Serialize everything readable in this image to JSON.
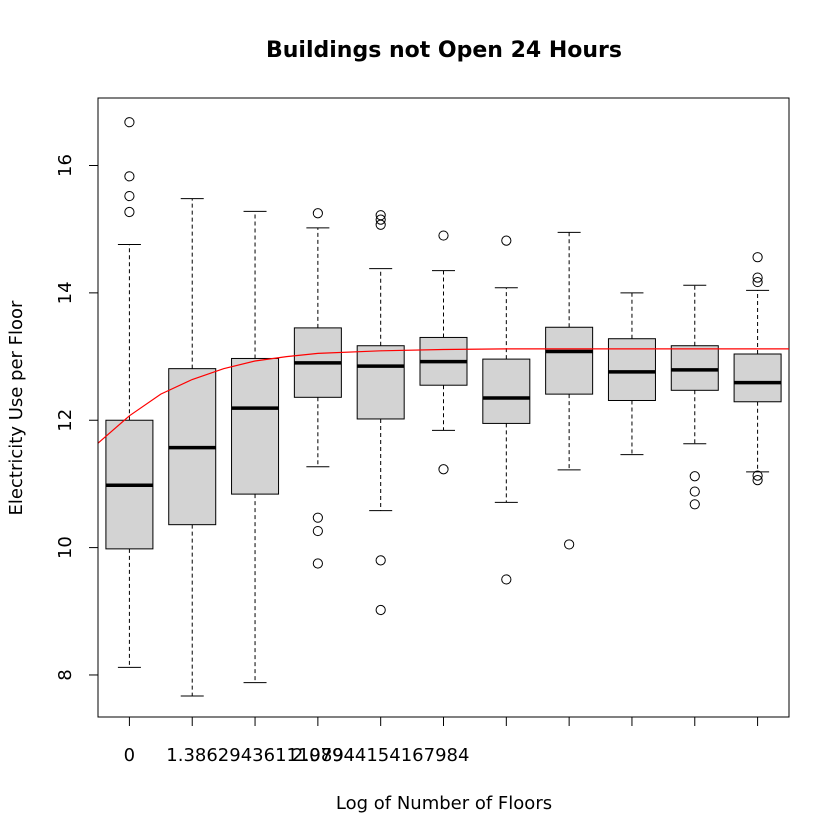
{
  "chart_data": {
    "type": "boxplot",
    "title": "Buildings not Open 24 Hours",
    "xlabel": "Log of Number of Floors",
    "ylabel": "Electricity Use per Floor",
    "ylim": [
      7.34,
      17.06
    ],
    "yticks": [
      8,
      10,
      12,
      14,
      16
    ],
    "grid": false,
    "x_tick_labels": [
      "0",
      "",
      "1.38629436111989",
      "",
      "2.07944154167984",
      "",
      "",
      "",
      "",
      "",
      ""
    ],
    "boxes": [
      {
        "min": 8.12,
        "q1": 9.98,
        "median": 10.98,
        "q3": 12.0,
        "max": 14.76,
        "outliers": [
          15.27,
          15.52,
          15.83,
          16.68
        ]
      },
      {
        "min": 7.67,
        "q1": 10.36,
        "median": 11.57,
        "q3": 12.81,
        "max": 15.48,
        "outliers": []
      },
      {
        "min": 7.88,
        "q1": 10.84,
        "median": 12.19,
        "q3": 12.97,
        "max": 15.28,
        "outliers": []
      },
      {
        "min": 11.27,
        "q1": 12.36,
        "median": 12.9,
        "q3": 13.45,
        "max": 15.02,
        "outliers": [
          9.75,
          10.26,
          10.47,
          15.25
        ]
      },
      {
        "min": 10.58,
        "q1": 12.02,
        "median": 12.85,
        "q3": 13.17,
        "max": 14.38,
        "outliers": [
          9.02,
          9.8,
          15.07,
          15.15,
          15.22
        ]
      },
      {
        "min": 11.84,
        "q1": 12.55,
        "median": 12.92,
        "q3": 13.3,
        "max": 14.35,
        "outliers": [
          11.23,
          14.9
        ]
      },
      {
        "min": 10.71,
        "q1": 11.95,
        "median": 12.35,
        "q3": 12.96,
        "max": 14.08,
        "outliers": [
          9.5,
          14.82
        ]
      },
      {
        "min": 11.22,
        "q1": 12.41,
        "median": 13.08,
        "q3": 13.46,
        "max": 14.95,
        "outliers": [
          10.05
        ]
      },
      {
        "min": 11.46,
        "q1": 12.31,
        "median": 12.76,
        "q3": 13.28,
        "max": 14.0,
        "outliers": []
      },
      {
        "min": 11.63,
        "q1": 12.47,
        "median": 12.79,
        "q3": 13.17,
        "max": 14.12,
        "outliers": [
          10.68,
          10.88,
          11.12
        ]
      },
      {
        "min": 11.19,
        "q1": 12.29,
        "median": 12.59,
        "q3": 13.04,
        "max": 14.04,
        "outliers": [
          11.06,
          11.13,
          14.17,
          14.24,
          14.56
        ]
      }
    ],
    "fit_line": {
      "color": "#ff0000",
      "x": [
        0.5,
        1,
        1.5,
        2,
        2.5,
        3,
        3.5,
        4,
        5,
        6,
        7,
        8,
        9,
        10,
        11,
        11.5
      ],
      "y": [
        11.64,
        12.07,
        12.41,
        12.64,
        12.81,
        12.93,
        13.0,
        13.05,
        13.09,
        13.11,
        13.12,
        13.12,
        13.12,
        13.12,
        13.12,
        13.12
      ]
    },
    "box_fill": "#d3d3d3"
  }
}
